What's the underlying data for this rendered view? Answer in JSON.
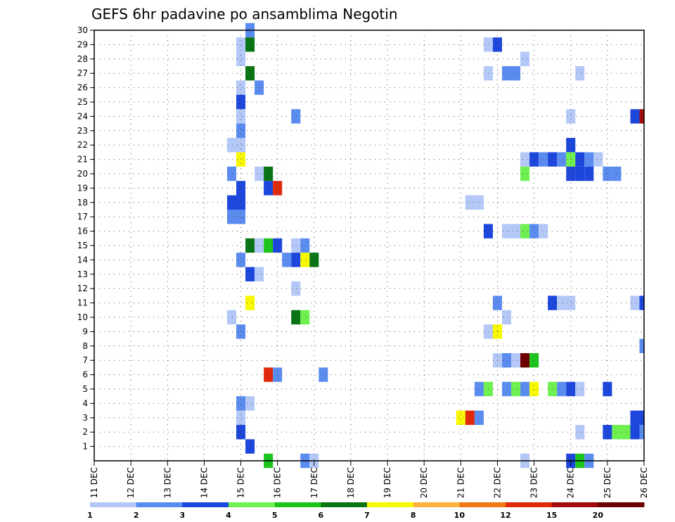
{
  "chart_data": {
    "type": "heatmap",
    "title": "GEFS 6hr padavine po ansamblima Negotin",
    "xlabel": "",
    "ylabel": "",
    "x_tick_labels": [
      "11 DEC",
      "12 DEC",
      "13 DEC",
      "14 DEC",
      "15 DEC",
      "16 DEC",
      "17 DEC",
      "18 DEC",
      "19 DEC",
      "20 DEC",
      "21 DEC",
      "22 DEC",
      "23 DEC",
      "24 DEC",
      "25 DEC",
      "26 DEC"
    ],
    "x_range_days": [
      11,
      26
    ],
    "y_tick_labels": [
      "1",
      "2",
      "3",
      "4",
      "5",
      "6",
      "7",
      "8",
      "9",
      "10",
      "11",
      "12",
      "13",
      "14",
      "15",
      "16",
      "17",
      "18",
      "19",
      "20",
      "21",
      "22",
      "23",
      "24",
      "25",
      "26",
      "27",
      "28",
      "29",
      "30"
    ],
    "y_range": [
      0,
      30
    ],
    "grid": true,
    "colorbar": {
      "labels": [
        "1",
        "2",
        "3",
        "4",
        "5",
        "6",
        "7",
        "8",
        "10",
        "12",
        "15",
        "20"
      ],
      "colors": [
        "#b4c8f8",
        "#5a8cf0",
        "#1c46dc",
        "#6ef050",
        "#1cc41c",
        "#0a7414",
        "#f8f800",
        "#f8b43c",
        "#f07814",
        "#e0280a",
        "#a00c0c",
        "#6e0000"
      ]
    },
    "cells": [
      [
        15.25,
        30,
        2
      ],
      [
        15.0,
        29,
        1
      ],
      [
        15.25,
        29,
        6
      ],
      [
        21.75,
        29,
        1
      ],
      [
        22.0,
        29,
        3
      ],
      [
        15.0,
        28,
        1
      ],
      [
        22.75,
        28,
        1
      ],
      [
        15.25,
        27,
        6
      ],
      [
        21.75,
        27,
        1
      ],
      [
        22.25,
        27,
        2
      ],
      [
        22.5,
        27,
        2
      ],
      [
        24.25,
        27,
        1
      ],
      [
        15.0,
        26,
        1
      ],
      [
        15.5,
        26,
        2
      ],
      [
        15.0,
        25,
        3
      ],
      [
        15.0,
        24,
        1
      ],
      [
        16.5,
        24,
        2
      ],
      [
        24.0,
        24,
        1
      ],
      [
        25.75,
        24,
        3
      ],
      [
        26.0,
        24,
        11
      ],
      [
        15.0,
        23,
        2
      ],
      [
        14.75,
        22,
        1
      ],
      [
        15.0,
        22,
        1
      ],
      [
        24.0,
        22,
        3
      ],
      [
        15.0,
        21,
        7
      ],
      [
        22.75,
        21,
        1
      ],
      [
        23.0,
        21,
        3
      ],
      [
        23.25,
        21,
        2
      ],
      [
        23.5,
        21,
        3
      ],
      [
        23.75,
        21,
        2
      ],
      [
        24.0,
        21,
        4
      ],
      [
        24.25,
        21,
        3
      ],
      [
        24.5,
        21,
        2
      ],
      [
        24.75,
        21,
        1
      ],
      [
        14.75,
        20,
        2
      ],
      [
        15.5,
        20,
        1
      ],
      [
        15.75,
        20,
        6
      ],
      [
        22.75,
        20,
        4
      ],
      [
        24.0,
        20,
        3
      ],
      [
        24.25,
        20,
        3
      ],
      [
        24.5,
        20,
        3
      ],
      [
        25.0,
        20,
        2
      ],
      [
        25.25,
        20,
        2
      ],
      [
        15.0,
        19,
        3
      ],
      [
        15.75,
        19,
        3
      ],
      [
        16.0,
        19,
        10
      ],
      [
        14.75,
        18,
        3
      ],
      [
        15.0,
        18,
        3
      ],
      [
        21.25,
        18,
        1
      ],
      [
        21.5,
        18,
        1
      ],
      [
        14.75,
        17,
        2
      ],
      [
        15.0,
        17,
        2
      ],
      [
        21.75,
        16,
        3
      ],
      [
        22.25,
        16,
        1
      ],
      [
        22.5,
        16,
        1
      ],
      [
        22.75,
        16,
        4
      ],
      [
        23.0,
        16,
        2
      ],
      [
        23.25,
        16,
        1
      ],
      [
        15.25,
        15,
        6
      ],
      [
        15.5,
        15,
        1
      ],
      [
        15.75,
        15,
        5
      ],
      [
        16.0,
        15,
        3
      ],
      [
        16.5,
        15,
        1
      ],
      [
        16.75,
        15,
        2
      ],
      [
        15.0,
        14,
        2
      ],
      [
        16.25,
        14,
        2
      ],
      [
        16.5,
        14,
        3
      ],
      [
        16.75,
        14,
        7
      ],
      [
        17.0,
        14,
        6
      ],
      [
        15.25,
        13,
        3
      ],
      [
        15.5,
        13,
        1
      ],
      [
        16.5,
        12,
        1
      ],
      [
        15.25,
        11,
        7
      ],
      [
        22.0,
        11,
        2
      ],
      [
        23.5,
        11,
        3
      ],
      [
        23.75,
        11,
        1
      ],
      [
        24.0,
        11,
        1
      ],
      [
        25.75,
        11,
        1
      ],
      [
        26.0,
        11,
        3
      ],
      [
        14.75,
        10,
        1
      ],
      [
        16.5,
        10,
        6
      ],
      [
        16.75,
        10,
        4
      ],
      [
        22.25,
        10,
        1
      ],
      [
        15.0,
        9,
        2
      ],
      [
        21.75,
        9,
        1
      ],
      [
        22.0,
        9,
        7
      ],
      [
        26.0,
        8,
        2
      ],
      [
        22.0,
        7,
        1
      ],
      [
        22.25,
        7,
        2
      ],
      [
        22.5,
        7,
        1
      ],
      [
        22.75,
        7,
        12
      ],
      [
        23.0,
        7,
        5
      ],
      [
        15.75,
        6,
        10
      ],
      [
        16.0,
        6,
        2
      ],
      [
        17.25,
        6,
        2
      ],
      [
        21.5,
        5,
        2
      ],
      [
        21.75,
        5,
        4
      ],
      [
        22.25,
        5,
        2
      ],
      [
        22.5,
        5,
        4
      ],
      [
        22.75,
        5,
        2
      ],
      [
        23.0,
        5,
        7
      ],
      [
        23.5,
        5,
        4
      ],
      [
        23.75,
        5,
        2
      ],
      [
        24.0,
        5,
        3
      ],
      [
        24.25,
        5,
        1
      ],
      [
        25.0,
        5,
        3
      ],
      [
        15.0,
        4,
        2
      ],
      [
        15.25,
        4,
        1
      ],
      [
        15.0,
        3,
        1
      ],
      [
        21.0,
        3,
        7
      ],
      [
        21.25,
        3,
        10
      ],
      [
        21.5,
        3,
        2
      ],
      [
        25.75,
        3,
        3
      ],
      [
        26.0,
        3,
        3
      ],
      [
        15.0,
        2,
        3
      ],
      [
        24.25,
        2,
        1
      ],
      [
        25.0,
        2,
        3
      ],
      [
        25.25,
        2,
        4
      ],
      [
        25.5,
        2,
        4
      ],
      [
        25.75,
        2,
        3
      ],
      [
        26.0,
        2,
        2
      ],
      [
        15.25,
        1,
        3
      ],
      [
        15.75,
        0,
        5
      ],
      [
        16.75,
        0,
        2
      ],
      [
        17.0,
        0,
        1
      ],
      [
        22.75,
        0,
        1
      ],
      [
        24.0,
        0,
        3
      ],
      [
        24.25,
        0,
        5
      ],
      [
        24.5,
        0,
        2
      ]
    ]
  }
}
